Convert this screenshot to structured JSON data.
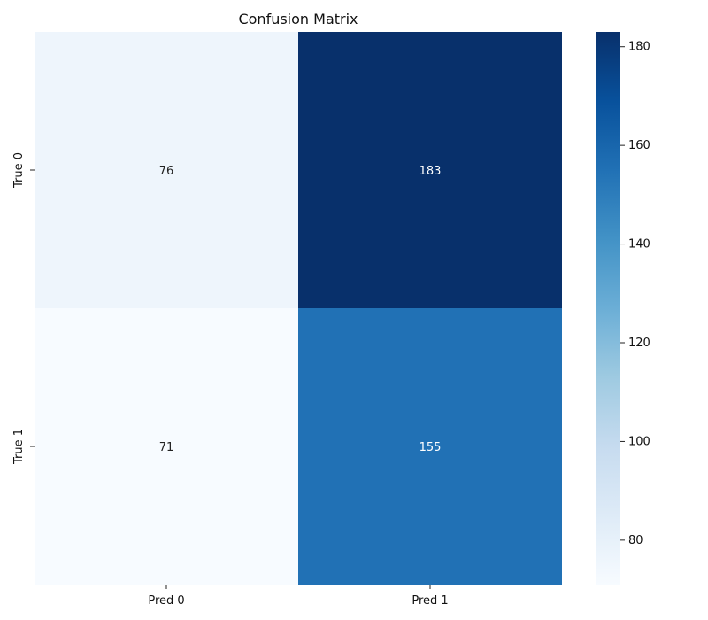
{
  "chart_data": {
    "type": "heatmap",
    "title": "Confusion Matrix",
    "x_categories": [
      "Pred 0",
      "Pred 1"
    ],
    "y_categories": [
      "True 0",
      "True 1"
    ],
    "values": [
      [
        76,
        183
      ],
      [
        71,
        155
      ]
    ],
    "colorbar": {
      "min": 71,
      "max": 183,
      "ticks": [
        80,
        100,
        120,
        140,
        160,
        180
      ]
    },
    "colormap": "Blues",
    "colors": {
      "low": "#f7fbff",
      "high": "#08306b",
      "light_text": "#ffffff",
      "dark_text": "#222222"
    }
  }
}
